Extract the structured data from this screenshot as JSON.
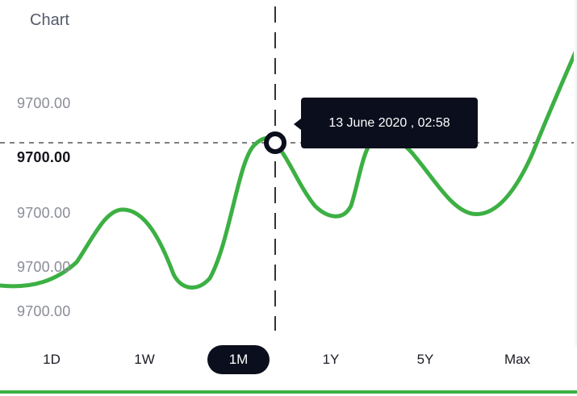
{
  "header": {
    "title": "Chart"
  },
  "y_axis": {
    "labels": [
      "9700.00",
      "9700.00",
      "9700.00",
      "9700.00",
      "9700.00"
    ],
    "active_index": 1
  },
  "tooltip": {
    "text": "13 June 2020 , 02:58"
  },
  "ranges": {
    "items": [
      "1D",
      "1W",
      "1M",
      "1Y",
      "5Y",
      "Max"
    ],
    "selected": "1M"
  },
  "colors": {
    "line": "#3cb043",
    "accent_dark": "#0b0e1c",
    "guide": "#555555"
  }
}
